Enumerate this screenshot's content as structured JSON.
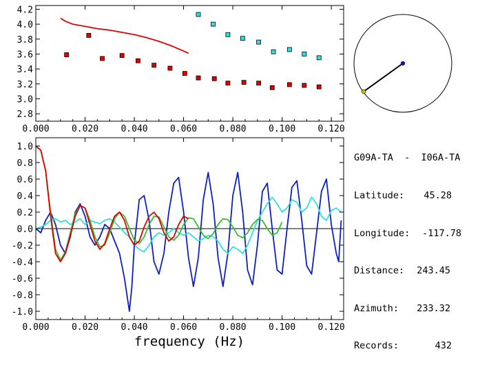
{
  "station_pair": "G09A-TA  -  I06A-TA",
  "info": [
    {
      "key": "Latitude:",
      "value": "45.28"
    },
    {
      "key": "Longitude:",
      "value": "-117.78"
    },
    {
      "key": "Distance:",
      "value": "243.45"
    },
    {
      "key": "Azimuth:",
      "value": "233.32"
    },
    {
      "key": "Records:",
      "value": "432"
    }
  ],
  "colors": {
    "red": "#e00000",
    "cyan": "#30e0e0",
    "blue": "#0a1fc0",
    "green": "#30c030",
    "black": "#000000"
  },
  "chart_data": [
    {
      "type": "scatter",
      "xlabel": "",
      "ylabel": "",
      "xlim": [
        0.0,
        0.125
      ],
      "ylim": [
        2.7,
        4.25
      ],
      "x_ticks": [
        "0.000",
        "0.020",
        "0.040",
        "0.060",
        "0.080",
        "0.100",
        "0.120"
      ],
      "y_ticks": [
        "2.8",
        "3.0",
        "3.2",
        "3.4",
        "3.6",
        "3.8",
        "4.0",
        "4.2"
      ],
      "series": [
        {
          "kind": "line",
          "color": "red",
          "x": [
            0.01,
            0.012,
            0.015,
            0.02,
            0.025,
            0.03,
            0.035,
            0.04,
            0.045,
            0.05,
            0.055,
            0.06,
            0.062
          ],
          "y": [
            4.08,
            4.04,
            4.0,
            3.97,
            3.94,
            3.92,
            3.89,
            3.86,
            3.82,
            3.77,
            3.71,
            3.64,
            3.61
          ]
        },
        {
          "kind": "markers",
          "color": "red",
          "x": [
            0.0125,
            0.0215,
            0.027,
            0.035,
            0.0415,
            0.048,
            0.0545,
            0.0605,
            0.066,
            0.0725,
            0.078,
            0.0845,
            0.0905,
            0.096,
            0.103,
            0.109,
            0.115
          ],
          "y": [
            3.59,
            3.85,
            3.54,
            3.58,
            3.51,
            3.45,
            3.41,
            3.34,
            3.28,
            3.27,
            3.21,
            3.22,
            3.21,
            3.15,
            3.19,
            3.18,
            3.16
          ]
        },
        {
          "kind": "markers",
          "color": "cyan",
          "x": [
            0.066,
            0.072,
            0.078,
            0.084,
            0.0905,
            0.0965,
            0.103,
            0.109,
            0.115
          ],
          "y": [
            4.13,
            4.0,
            3.86,
            3.81,
            3.76,
            3.63,
            3.66,
            3.6,
            3.55
          ]
        }
      ]
    },
    {
      "type": "line",
      "xlabel": "frequency (Hz)",
      "ylabel": "",
      "xlim": [
        0.0,
        0.125
      ],
      "ylim": [
        -1.1,
        1.1
      ],
      "x_ticks": [
        "0.000",
        "0.020",
        "0.040",
        "0.060",
        "0.080",
        "0.100",
        "0.120"
      ],
      "y_ticks": [
        "1.0",
        "0.8",
        "0.6",
        "0.4",
        "0.2",
        "0.0",
        "-0.2",
        "-0.4",
        "-0.6",
        "-0.8",
        "-1.0"
      ],
      "series": [
        {
          "color": "black",
          "x": [
            0.0,
            0.125
          ],
          "y": [
            0.0,
            0.0
          ]
        },
        {
          "color": "blue",
          "x": [
            0.0,
            0.002,
            0.004,
            0.006,
            0.008,
            0.01,
            0.012,
            0.014,
            0.016,
            0.018,
            0.02,
            0.022,
            0.024,
            0.026,
            0.028,
            0.03,
            0.032,
            0.034,
            0.036,
            0.037,
            0.038,
            0.039,
            0.04,
            0.042,
            0.044,
            0.046,
            0.048,
            0.05,
            0.052,
            0.054,
            0.056,
            0.058,
            0.06,
            0.062,
            0.064,
            0.066,
            0.068,
            0.07,
            0.072,
            0.074,
            0.076,
            0.078,
            0.08,
            0.082,
            0.084,
            0.086,
            0.088,
            0.09,
            0.092,
            0.094,
            0.096,
            0.098,
            0.1,
            0.102,
            0.104,
            0.106,
            0.108,
            0.11,
            0.112,
            0.114,
            0.116,
            0.118,
            0.12,
            0.122,
            0.123,
            0.124
          ],
          "y": [
            0.0,
            -0.05,
            0.1,
            0.2,
            0.05,
            -0.2,
            -0.3,
            -0.1,
            0.2,
            0.3,
            0.15,
            -0.1,
            -0.2,
            -0.1,
            0.05,
            0.0,
            -0.15,
            -0.3,
            -0.6,
            -0.8,
            -1.0,
            -0.7,
            -0.2,
            0.35,
            0.4,
            0.1,
            -0.4,
            -0.55,
            -0.3,
            0.2,
            0.55,
            0.62,
            0.2,
            -0.35,
            -0.7,
            -0.35,
            0.35,
            0.68,
            0.3,
            -0.35,
            -0.7,
            -0.3,
            0.4,
            0.68,
            0.2,
            -0.5,
            -0.68,
            -0.2,
            0.45,
            0.55,
            0.0,
            -0.5,
            -0.55,
            0.0,
            0.5,
            0.58,
            0.1,
            -0.45,
            -0.55,
            -0.05,
            0.45,
            0.6,
            0.05,
            -0.3,
            -0.4,
            0.1
          ]
        },
        {
          "color": "cyan",
          "x": [
            0.0,
            0.002,
            0.004,
            0.006,
            0.008,
            0.01,
            0.012,
            0.014,
            0.016,
            0.018,
            0.02,
            0.022,
            0.024,
            0.026,
            0.028,
            0.03,
            0.032,
            0.034,
            0.036,
            0.038,
            0.04,
            0.042,
            0.044,
            0.046,
            0.048,
            0.05,
            0.052,
            0.054,
            0.056,
            0.058,
            0.06,
            0.062,
            0.064,
            0.066,
            0.068,
            0.07,
            0.072,
            0.074,
            0.076,
            0.078,
            0.08,
            0.082,
            0.084,
            0.086,
            0.088,
            0.09,
            0.092,
            0.094,
            0.096,
            0.098,
            0.1,
            0.102,
            0.104,
            0.106,
            0.108,
            0.11,
            0.112,
            0.114,
            0.116,
            0.118,
            0.12,
            0.122,
            0.124
          ],
          "y": [
            0.0,
            0.02,
            0.05,
            0.1,
            0.12,
            0.08,
            0.1,
            0.05,
            0.08,
            0.12,
            0.05,
            0.1,
            0.08,
            0.06,
            0.1,
            0.12,
            0.08,
            0.02,
            -0.05,
            -0.1,
            -0.2,
            -0.25,
            -0.28,
            -0.2,
            -0.1,
            -0.05,
            -0.08,
            -0.05,
            0.0,
            -0.05,
            -0.08,
            -0.05,
            -0.1,
            -0.15,
            -0.12,
            -0.08,
            -0.1,
            -0.15,
            -0.25,
            -0.3,
            -0.22,
            -0.25,
            -0.3,
            -0.2,
            -0.05,
            0.1,
            0.2,
            0.3,
            0.38,
            0.3,
            0.2,
            0.25,
            0.35,
            0.32,
            0.2,
            0.25,
            0.38,
            0.3,
            0.15,
            0.1,
            0.22,
            0.25,
            0.2
          ]
        },
        {
          "color": "green",
          "x": [
            0.0,
            0.002,
            0.004,
            0.006,
            0.008,
            0.01,
            0.012,
            0.014,
            0.016,
            0.018,
            0.02,
            0.022,
            0.024,
            0.026,
            0.028,
            0.03,
            0.032,
            0.034,
            0.036,
            0.038,
            0.04,
            0.042,
            0.044,
            0.046,
            0.048,
            0.05,
            0.052,
            0.054,
            0.056,
            0.058,
            0.06,
            0.062,
            0.064,
            0.066,
            0.068,
            0.07,
            0.072,
            0.074,
            0.076,
            0.078,
            0.08,
            0.082,
            0.084,
            0.086,
            0.088,
            0.09,
            0.092,
            0.094,
            0.096,
            0.098,
            0.1
          ],
          "y": [
            1.0,
            0.95,
            0.7,
            0.2,
            -0.25,
            -0.38,
            -0.28,
            -0.05,
            0.18,
            0.28,
            0.25,
            0.1,
            -0.1,
            -0.22,
            -0.2,
            -0.05,
            0.12,
            0.2,
            0.15,
            0.0,
            -0.14,
            -0.18,
            -0.1,
            0.05,
            0.15,
            0.14,
            0.02,
            -0.1,
            -0.14,
            -0.08,
            0.05,
            0.13,
            0.12,
            0.02,
            -0.08,
            -0.12,
            -0.06,
            0.05,
            0.12,
            0.11,
            0.02,
            -0.08,
            -0.11,
            -0.05,
            0.05,
            0.11,
            0.1,
            0.0,
            -0.08,
            -0.05,
            0.08
          ]
        },
        {
          "color": "red",
          "x": [
            0.0,
            0.002,
            0.004,
            0.006,
            0.008,
            0.01,
            0.012,
            0.014,
            0.016,
            0.018,
            0.02,
            0.022,
            0.024,
            0.026,
            0.028,
            0.03,
            0.032,
            0.034,
            0.036,
            0.038,
            0.04,
            0.042,
            0.044,
            0.046,
            0.048,
            0.05,
            0.052,
            0.054,
            0.056,
            0.058,
            0.06,
            0.062
          ],
          "y": [
            1.0,
            0.95,
            0.7,
            0.15,
            -0.3,
            -0.4,
            -0.3,
            -0.08,
            0.15,
            0.28,
            0.25,
            0.05,
            -0.15,
            -0.25,
            -0.18,
            0.0,
            0.15,
            0.2,
            0.1,
            -0.1,
            -0.2,
            -0.15,
            0.02,
            0.15,
            0.2,
            0.12,
            -0.05,
            -0.15,
            -0.1,
            0.05,
            0.15,
            0.12
          ]
        }
      ]
    },
    {
      "type": "scatter",
      "xlabel": "",
      "ylabel": "",
      "series": [
        {
          "kind": "circle-outline",
          "color": "black"
        },
        {
          "kind": "path",
          "color": "black",
          "from_point": "station-1",
          "to_point": "station-2"
        },
        {
          "kind": "markers",
          "color": "blue",
          "name": "station-1"
        },
        {
          "kind": "markers",
          "color": "#e0c000",
          "name": "station-2"
        }
      ]
    }
  ]
}
